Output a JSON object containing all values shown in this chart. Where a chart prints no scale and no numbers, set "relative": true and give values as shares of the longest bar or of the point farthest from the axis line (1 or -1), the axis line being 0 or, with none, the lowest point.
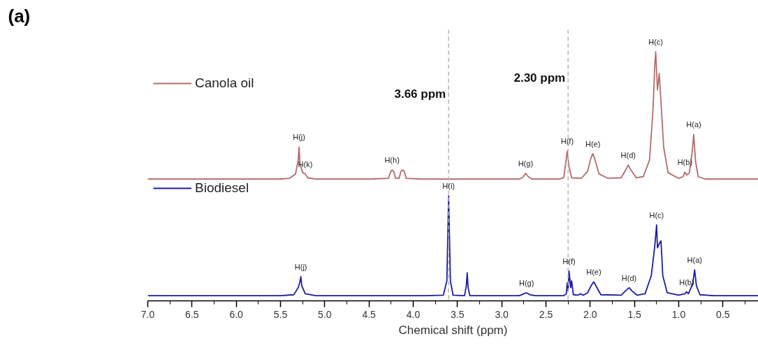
{
  "chart_data": {
    "type": "line",
    "title": "(a)",
    "relative": true,
    "xlabel": "Chemical shift (ppm)",
    "xlim": [
      7.0,
      0.1
    ],
    "legend": "left",
    "grid": false,
    "xticks": [
      {
        "value": 7.0,
        "label": "7.0"
      },
      {
        "value": 6.75,
        "label": null
      },
      6.5,
      {
        "value": 6.25,
        "label": null
      },
      {
        "value": 6.0,
        "label": "6.0"
      },
      {
        "value": 5.75,
        "label": null
      },
      5.5,
      {
        "value": 5.25,
        "label": null
      },
      {
        "value": 5.0,
        "label": "5.0"
      },
      {
        "value": 4.75,
        "label": null
      },
      4.5,
      {
        "value": 4.25,
        "label": null
      },
      {
        "value": 4.0,
        "label": "4.0"
      },
      {
        "value": 3.75,
        "label": null
      },
      3.5,
      {
        "value": 3.25,
        "label": null
      },
      {
        "value": 3.0,
        "label": "3.0"
      },
      {
        "value": 2.75,
        "label": null
      },
      2.5,
      {
        "value": 2.25,
        "label": null
      },
      {
        "value": 2.0,
        "label": "2.0"
      },
      {
        "value": 1.75,
        "label": null
      },
      1.5,
      {
        "value": 1.25,
        "label": null
      },
      {
        "value": 1.0,
        "label": "1.0"
      },
      {
        "value": 0.75,
        "label": null
      },
      0.5,
      {
        "value": 0.25,
        "label": null
      }
    ],
    "series": [
      {
        "name": "Canola oil",
        "color": "#b36b6b",
        "x": [
          7.0,
          6.0,
          5.5,
          5.4,
          5.33,
          5.3,
          5.29,
          5.28,
          5.25,
          5.22,
          5.19,
          5.1,
          4.5,
          4.28,
          4.26,
          4.24,
          4.22,
          4.2,
          4.16,
          4.14,
          4.12,
          4.1,
          4.08,
          3.9,
          3.6,
          3.0,
          2.8,
          2.76,
          2.73,
          2.7,
          2.66,
          2.35,
          2.3,
          2.28,
          2.26,
          2.24,
          2.21,
          2.1,
          2.03,
          1.99,
          1.97,
          1.95,
          1.9,
          1.8,
          1.65,
          1.6,
          1.57,
          1.54,
          1.48,
          1.4,
          1.33,
          1.29,
          1.27,
          1.26,
          1.24,
          1.22,
          1.2,
          1.17,
          1.12,
          1.0,
          0.95,
          0.93,
          0.91,
          0.88,
          0.85,
          0.83,
          0.81,
          0.78,
          0.7,
          0.5,
          0.1
        ],
        "values": [
          0.478,
          0.478,
          0.478,
          0.481,
          0.499,
          0.556,
          0.609,
          0.541,
          0.504,
          0.499,
          0.483,
          0.478,
          0.478,
          0.481,
          0.504,
          0.515,
          0.509,
          0.481,
          0.481,
          0.509,
          0.515,
          0.509,
          0.481,
          0.478,
          0.478,
          0.478,
          0.478,
          0.486,
          0.501,
          0.488,
          0.478,
          0.478,
          0.483,
          0.535,
          0.593,
          0.53,
          0.483,
          0.481,
          0.509,
          0.567,
          0.582,
          0.562,
          0.499,
          0.481,
          0.483,
          0.515,
          0.535,
          0.515,
          0.483,
          0.488,
          0.556,
          0.765,
          0.948,
          1.0,
          0.843,
          0.911,
          0.791,
          0.609,
          0.504,
          0.481,
          0.488,
          0.507,
          0.494,
          0.504,
          0.582,
          0.661,
          0.551,
          0.488,
          0.478,
          0.478,
          0.478
        ]
      },
      {
        "name": "Biodiesel",
        "color": "#1c1ca3",
        "x": [
          7.0,
          6.0,
          5.5,
          5.35,
          5.3,
          5.28,
          5.27,
          5.26,
          5.22,
          5.1,
          4.5,
          3.85,
          3.66,
          3.62,
          3.6,
          3.58,
          3.55,
          3.42,
          3.4,
          3.39,
          3.38,
          3.36,
          3.0,
          2.8,
          2.75,
          2.72,
          2.68,
          2.62,
          2.3,
          2.27,
          2.26,
          2.25,
          2.24,
          2.22,
          2.21,
          2.19,
          2.14,
          2.11,
          2.08,
          2.03,
          1.99,
          1.96,
          1.93,
          1.88,
          1.65,
          1.6,
          1.56,
          1.53,
          1.47,
          1.38,
          1.31,
          1.27,
          1.25,
          1.24,
          1.22,
          1.2,
          1.18,
          1.13,
          1.0,
          0.93,
          0.91,
          0.89,
          0.86,
          0.84,
          0.82,
          0.8,
          0.76,
          0.6,
          0.1
        ],
        "values": [
          0,
          0,
          0,
          0.004,
          0.033,
          0.057,
          0.078,
          0.041,
          0.008,
          0,
          0,
          0,
          0.002,
          0.061,
          0.409,
          0.061,
          0.002,
          0,
          0.041,
          0.094,
          0.033,
          0,
          0,
          0,
          0.008,
          0.012,
          0.004,
          0,
          0,
          0.008,
          0.053,
          0.02,
          0.102,
          0.033,
          0.061,
          0.004,
          0.002,
          0.008,
          0.002,
          0.012,
          0.041,
          0.057,
          0.037,
          0.004,
          0.002,
          0.02,
          0.033,
          0.02,
          0.002,
          0.008,
          0.082,
          0.205,
          0.29,
          0.196,
          0.213,
          0.225,
          0.082,
          0.012,
          0.002,
          0.008,
          0.016,
          0.008,
          0.033,
          0.053,
          0.106,
          0.041,
          0.004,
          0,
          0
        ]
      }
    ],
    "ref_lines": [
      {
        "axis": "x",
        "value": 3.6,
        "label": "3.66 ppm",
        "color": "#b4b4b4",
        "line_style": "dashed"
      },
      {
        "axis": "x",
        "value": 2.25,
        "label": "2.30 ppm",
        "color": "#b4b4b4",
        "line_style": "dashed"
      }
    ],
    "annotations": [
      {
        "text": "H(j)",
        "x": 5.29,
        "y": 0.609
      },
      {
        "text": "H(k)",
        "x": 5.22,
        "y": 0.499
      },
      {
        "text": "H(h)",
        "x": 4.24,
        "y": 0.515
      },
      {
        "text": "H(g)",
        "x": 2.73,
        "y": 0.501
      },
      {
        "text": "H(f)",
        "x": 2.26,
        "y": 0.593
      },
      {
        "text": "H(e)",
        "x": 1.97,
        "y": 0.582
      },
      {
        "text": "H(d)",
        "x": 1.57,
        "y": 0.535
      },
      {
        "text": "H(c)",
        "x": 1.26,
        "y": 1.0
      },
      {
        "text": "H(b)",
        "x": 0.93,
        "y": 0.507
      },
      {
        "text": "H(a)",
        "x": 0.83,
        "y": 0.661
      },
      {
        "text": "H(j)",
        "x": 5.27,
        "y": 0.078
      },
      {
        "text": "H(i)",
        "x": 3.6,
        "y": 0.409
      },
      {
        "text": "H(g)",
        "x": 2.72,
        "y": 0.012
      },
      {
        "text": "H(f)",
        "x": 2.24,
        "y": 0.102
      },
      {
        "text": "H(e)",
        "x": 1.96,
        "y": 0.057
      },
      {
        "text": "H(d)",
        "x": 1.56,
        "y": 0.033
      },
      {
        "text": "H(c)",
        "x": 1.25,
        "y": 0.29
      },
      {
        "text": "H(b)",
        "x": 0.91,
        "y": 0.016
      },
      {
        "text": "H(a)",
        "x": 0.82,
        "y": 0.106
      }
    ]
  }
}
